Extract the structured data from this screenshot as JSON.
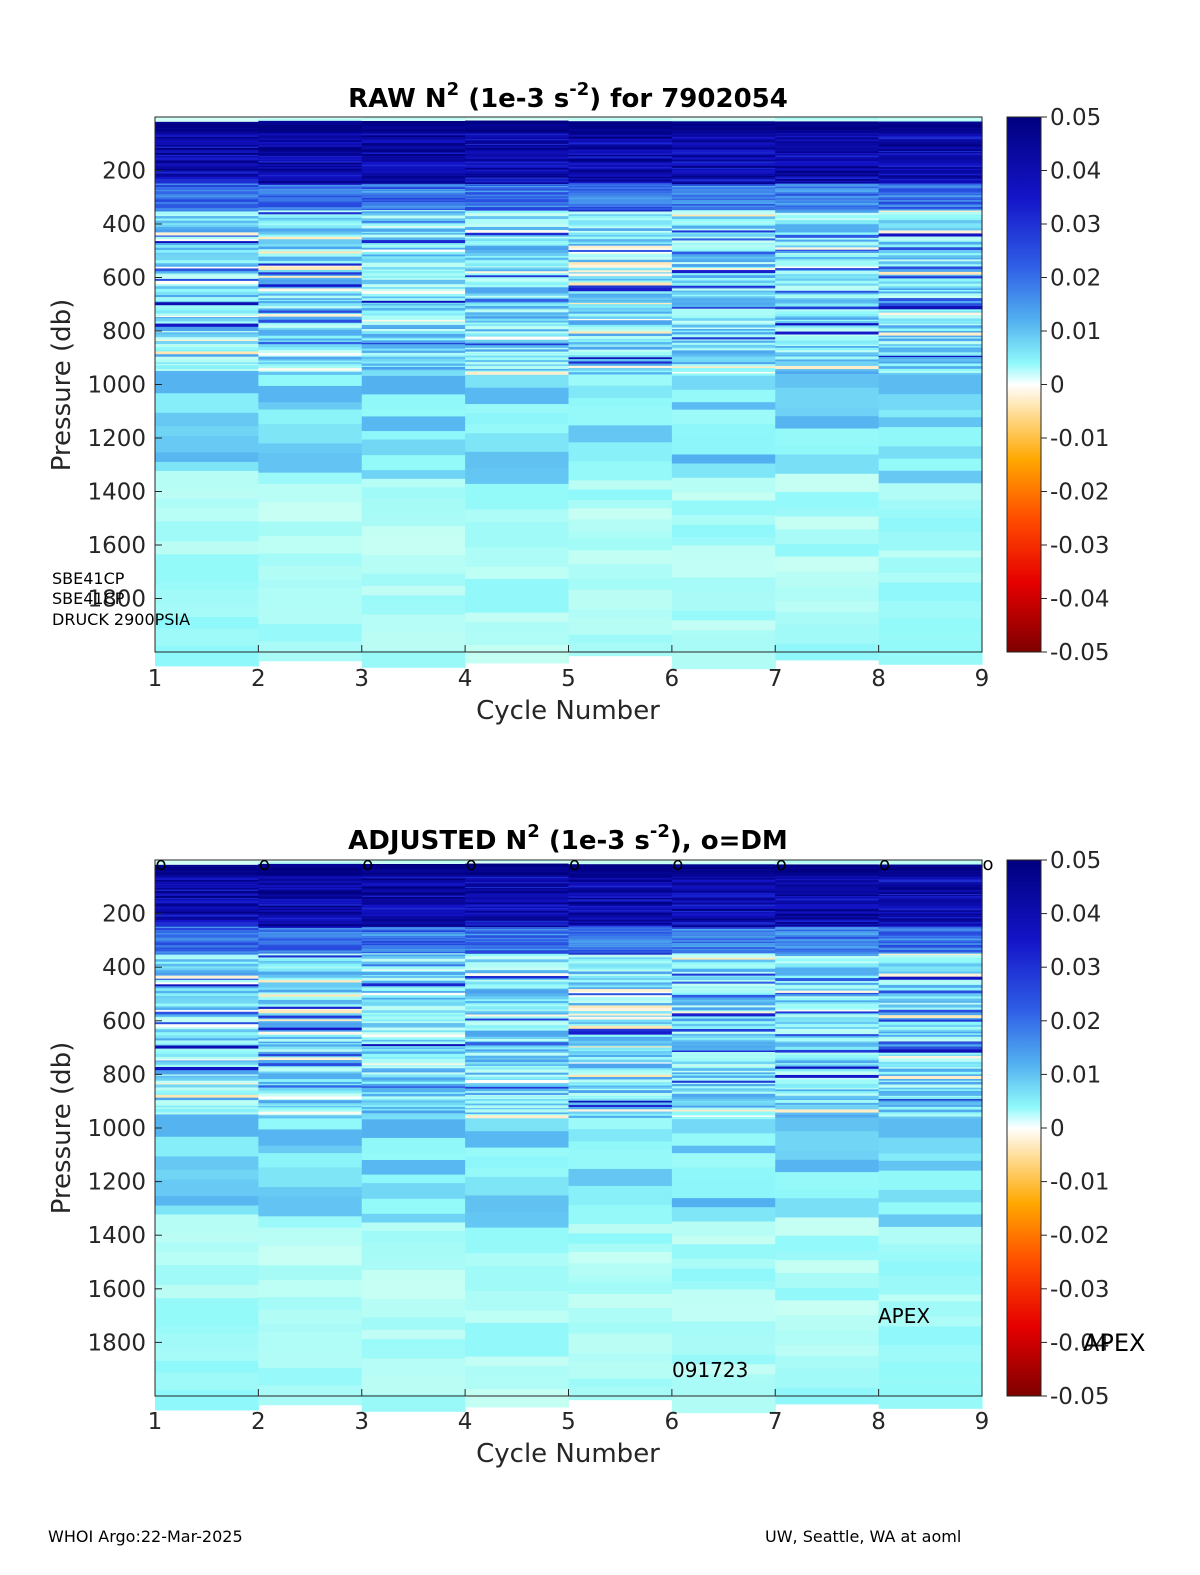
{
  "chart_data": [
    {
      "type": "heatmap",
      "title_main": "RAW N",
      "title_sup1": "2",
      "title_mid": " (1e-3 s",
      "title_sup2": "-2",
      "title_end": ") for 7902054",
      "xlabel": "Cycle Number",
      "ylabel": "Pressure (db)",
      "x_ticks": [
        "1",
        "2",
        "3",
        "4",
        "5",
        "6",
        "7",
        "8",
        "9"
      ],
      "y_ticks": [
        "200",
        "400",
        "600",
        "800",
        "1000",
        "1200",
        "1400",
        "1600",
        "1800"
      ],
      "xlim": [
        1,
        9
      ],
      "ylim": [
        2000,
        0
      ],
      "y_direction": "reversed",
      "colorbar_ticks": [
        "0.05",
        "0.04",
        "0.03",
        "0.02",
        "0.01",
        "0",
        "-0.01",
        "-0.02",
        "-0.03",
        "-0.04",
        "-0.05"
      ],
      "clim": [
        -0.05,
        0.05
      ],
      "colormap": "jet-like diverging (dark red to yellow to white to cyan to dark blue)",
      "cycles": [
        1,
        2,
        3,
        4,
        5,
        6,
        7,
        8
      ],
      "profile_bottom_db": [
        1997,
        1997,
        1997,
        1997,
        1997,
        1997,
        1997,
        1997
      ],
      "annotations": [
        "SBE41CP",
        "SBE41CP",
        "DRUCK 2900PSIA"
      ]
    },
    {
      "type": "heatmap",
      "title_main": "ADJUSTED N",
      "title_sup1": "2",
      "title_mid": " (1e-3 s",
      "title_sup2": "-2",
      "title_end": "), o=DM",
      "xlabel": "Cycle Number",
      "ylabel": "Pressure (db)",
      "x_ticks": [
        "1",
        "2",
        "3",
        "4",
        "5",
        "6",
        "7",
        "8",
        "9"
      ],
      "y_ticks": [
        "200",
        "400",
        "600",
        "800",
        "1000",
        "1200",
        "1400",
        "1600",
        "1800"
      ],
      "xlim": [
        1,
        9
      ],
      "ylim": [
        2000,
        0
      ],
      "y_direction": "reversed",
      "colorbar_ticks": [
        "0.05",
        "0.04",
        "0.03",
        "0.02",
        "0.01",
        "0",
        "-0.01",
        "-0.02",
        "-0.03",
        "-0.04",
        "-0.05"
      ],
      "clim": [
        -0.05,
        0.05
      ],
      "dm_marker": "o",
      "dm_cycles": [
        1,
        2,
        3,
        4,
        5,
        6,
        7,
        8,
        9
      ],
      "annotations": [
        "APEX",
        "091723",
        "APEX"
      ]
    }
  ],
  "footer": {
    "left": "WHOI Argo:22-Mar-2025",
    "right": "UW, Seattle, WA at aoml"
  }
}
